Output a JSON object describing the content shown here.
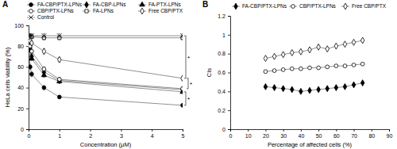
{
  "chart_data": [
    {
      "type": "line",
      "title": "A",
      "x_label": "Concentration (μM)",
      "y_label": "HeLa cells viability (%)",
      "x": [
        0.01,
        0.05,
        0.1,
        0.5,
        1,
        5
      ],
      "xlim": [
        0,
        5
      ],
      "xticks": [
        0,
        1,
        2,
        3,
        4,
        5
      ],
      "ylim": [
        0,
        100
      ],
      "yticks": [
        0,
        20,
        40,
        60,
        80,
        100
      ],
      "grid": false,
      "legend": "top",
      "annotations": [
        "*",
        "*",
        "*"
      ],
      "series": [
        {
          "name": "FA-CBP/PTX-LPNs",
          "color": "#000000",
          "marker": "circle-filled",
          "line_style": "solid",
          "values": [
            80,
            60,
            53,
            40,
            31,
            23
          ],
          "errors": [
            2,
            2.5,
            2.5,
            2,
            1.5,
            1.5
          ]
        },
        {
          "name": "FA-CBP-LPNs",
          "color": "#000000",
          "marker": "diamond-filled",
          "line_style": "solid",
          "values": [
            88,
            78,
            70,
            55,
            47,
            38
          ],
          "errors": [
            2,
            2,
            2,
            2,
            2,
            2
          ]
        },
        {
          "name": "FA-PTX-LPNs",
          "color": "#000000",
          "marker": "triangle-filled",
          "line_style": "solid",
          "values": [
            86,
            76,
            68,
            52,
            46,
            36
          ],
          "errors": [
            2,
            2,
            2,
            2,
            2,
            2
          ]
        },
        {
          "name": "CBP/PTX-LPNs",
          "color": "#000000",
          "marker": "circle-open",
          "line_style": "solid",
          "values": [
            87,
            80,
            75,
            58,
            48,
            39
          ],
          "errors": [
            2,
            2,
            2,
            2,
            2,
            2
          ]
        },
        {
          "name": "FA-LPNs",
          "color": "#000000",
          "marker": "square-open",
          "line_style": "solid",
          "values": [
            90,
            89,
            89,
            88,
            88,
            88
          ],
          "errors": [
            2,
            2,
            2,
            2,
            2,
            2
          ]
        },
        {
          "name": "Free CBP/PTX",
          "color": "#000000",
          "marker": "diamond-open",
          "line_style": "solid",
          "values": [
            89,
            85,
            83,
            75,
            67,
            49
          ],
          "errors": [
            2,
            2,
            2,
            2.5,
            2,
            2
          ]
        },
        {
          "name": "Control",
          "color": "#000000",
          "marker": "cross",
          "line_style": "solid",
          "values": [
            90,
            90,
            90,
            90,
            90,
            90
          ],
          "errors": [
            2,
            2,
            2,
            2,
            2,
            2
          ]
        }
      ]
    },
    {
      "type": "line",
      "title": "B",
      "x_label": "Percentage of affected cells (%)",
      "y_label": "CIs",
      "x": [
        20,
        25,
        30,
        35,
        40,
        45,
        50,
        55,
        60,
        65,
        70,
        75
      ],
      "xlim": [
        0,
        90
      ],
      "xticks": [
        0,
        10,
        20,
        30,
        40,
        50,
        60,
        70,
        80,
        90
      ],
      "ylim": [
        0,
        1.2
      ],
      "yticks": [
        0,
        0.2,
        0.4,
        0.6,
        0.8,
        1,
        1.2
      ],
      "grid": false,
      "legend": "top",
      "series": [
        {
          "name": "FA-CBP/PTX-LPNs",
          "color": "#000000",
          "marker": "diamond-filled",
          "line_style": "solid",
          "values": [
            0.45,
            0.44,
            0.43,
            0.42,
            0.4,
            0.41,
            0.42,
            0.43,
            0.44,
            0.45,
            0.47,
            0.49
          ]
        },
        {
          "name": "CBP/PTX-LPNs",
          "color": "#000000",
          "marker": "circle-open",
          "line_style": "solid",
          "values": [
            0.61,
            0.62,
            0.63,
            0.64,
            0.64,
            0.65,
            0.65,
            0.66,
            0.67,
            0.67,
            0.68,
            0.69
          ]
        },
        {
          "name": "Free CBP/PTX",
          "color": "#000000",
          "marker": "diamond-open",
          "line_style": "solid",
          "values": [
            0.75,
            0.77,
            0.79,
            0.81,
            0.82,
            0.84,
            0.87,
            0.85,
            0.88,
            0.9,
            0.92,
            0.94
          ]
        }
      ]
    }
  ]
}
